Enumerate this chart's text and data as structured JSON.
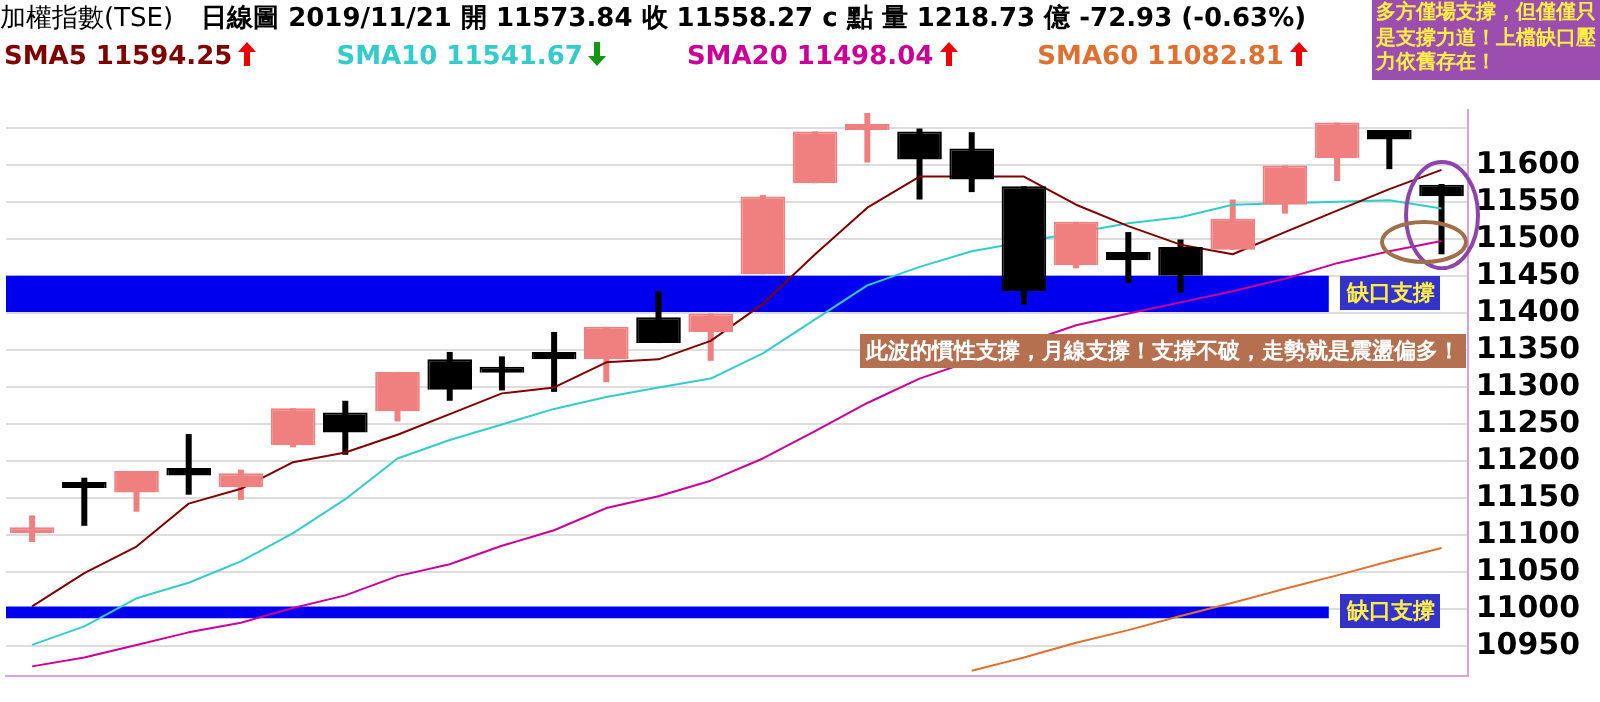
{
  "chart_data": {
    "type": "candlestick",
    "title": "加權指數(TSE)",
    "subtitle": "日線圖  2019/11/21  開 11573.84  收 11558.27 c 點  量 1218.73 億  -72.93 (-0.63%)",
    "categories": [
      null,
      null,
      null,
      null,
      null,
      null,
      null,
      null,
      null,
      null,
      null,
      null,
      null,
      null,
      null,
      null,
      null,
      null,
      null,
      null,
      null,
      null,
      null,
      null,
      null,
      null,
      null,
      null
    ],
    "ohlc": [
      [
        11103,
        11127,
        11091,
        11111
      ],
      [
        11166,
        11178,
        11113,
        11164
      ],
      [
        11158,
        11187,
        11132,
        11187
      ],
      [
        11191,
        11237,
        11155,
        11181
      ],
      [
        11165,
        11189,
        11148,
        11184
      ],
      [
        11222,
        11272,
        11219,
        11272
      ],
      [
        11266,
        11282,
        11209,
        11239
      ],
      [
        11268,
        11321,
        11254,
        11321
      ],
      [
        11338,
        11348,
        11282,
        11297
      ],
      [
        11322,
        11342,
        11296,
        11320
      ],
      [
        11348,
        11375,
        11294,
        11338
      ],
      [
        11338,
        11382,
        11307,
        11382
      ],
      [
        11395,
        11430,
        11360,
        11360
      ],
      [
        11375,
        11400,
        11336,
        11400
      ],
      [
        11453,
        11560,
        11453,
        11558
      ],
      [
        11576,
        11646,
        11576,
        11646
      ],
      [
        11648,
        11671,
        11604,
        11656
      ],
      [
        11646,
        11650,
        11554,
        11608
      ],
      [
        11623,
        11645,
        11564,
        11581
      ],
      [
        11572,
        11572,
        11412,
        11430
      ],
      [
        11465,
        11524,
        11461,
        11524
      ],
      [
        11483,
        11510,
        11441,
        11472
      ],
      [
        11490,
        11500,
        11428,
        11451
      ],
      [
        11486,
        11554,
        11486,
        11528
      ],
      [
        11547,
        11600,
        11535,
        11600
      ],
      [
        11610,
        11658,
        11579,
        11658
      ],
      [
        11648,
        11648,
        11595,
        11635
      ],
      [
        11573.84,
        11575,
        11480,
        11558.27
      ]
    ],
    "colors": [
      "#f08080",
      "#000000",
      "#f08080",
      "#000000",
      "#f08080",
      "#f08080",
      "#000000",
      "#f08080",
      "#000000",
      "#000000",
      "#000000",
      "#f08080",
      "#000000",
      "#f08080",
      "#f08080",
      "#f08080",
      "#f08080",
      "#000000",
      "#000000",
      "#000000",
      "#f08080",
      "#000000",
      "#000000",
      "#f08080",
      "#f08080",
      "#f08080",
      "#000000",
      "#000000"
    ],
    "series": [
      {
        "name": "SMA5 11594.25",
        "type": "line",
        "color": "#800000",
        "values": [
          11004,
          11049,
          11085,
          11143,
          11163,
          11199,
          11212,
          11236,
          11264,
          11292,
          11300,
          11334,
          11338,
          11363,
          11413,
          11480,
          11543,
          11585,
          null,
          11585,
          11547,
          11518,
          11493,
          11480,
          11510,
          11539,
          11568,
          11594
        ]
      },
      {
        "name": "SMA10 11541.67",
        "type": "line",
        "color": "#33cccc",
        "values": [
          10952,
          10977,
          11015,
          11036,
          11065,
          11103,
          11149,
          11204,
          11229,
          11250,
          11271,
          11287,
          11300,
          11312,
          11346,
          11392,
          11438,
          11463,
          11484,
          null,
          null,
          11522,
          11530,
          11547,
          null,
          11551,
          11553,
          11542
        ]
      },
      {
        "name": "SMA20 11498.04",
        "type": "line",
        "color": "#cc0099",
        "values": [
          10923,
          10935,
          10952,
          10969,
          10982,
          11002,
          11019,
          11045,
          11061,
          11086,
          11107,
          11137,
          11153,
          11174,
          11204,
          11241,
          11279,
          11312,
          null,
          null,
          11384,
          11400,
          11415,
          11430,
          11447,
          11468,
          11484,
          11498
        ]
      },
      {
        "name": "SMA60 11082.81",
        "type": "line",
        "color": "#e07030",
        "values": [
          null,
          null,
          null,
          null,
          null,
          null,
          null,
          null,
          null,
          null,
          null,
          null,
          null,
          null,
          null,
          null,
          null,
          null,
          10917,
          10935,
          10955,
          10972,
          10991,
          11009,
          11028,
          11046,
          11065,
          11083
        ]
      }
    ],
    "ylim": [
      10910,
      11675
    ],
    "yticks": [
      10950,
      11000,
      11050,
      11100,
      11150,
      11200,
      11250,
      11300,
      11350,
      11400,
      11450,
      11500,
      11550,
      11600,
      {
        "value": 11650,
        "label": null
      }
    ],
    "grid": "y",
    "legend": "top left",
    "tick_labels": "y",
    "bands": [
      {
        "axis": "y",
        "from": 11402,
        "to": 11451,
        "label": "缺口支撐",
        "color": "#0000ee"
      },
      {
        "axis": "y",
        "from": 10988,
        "to": 11004,
        "label": "缺口支撐",
        "color": "#0000ee"
      }
    ],
    "annotations": [
      "多方僅場支撐，但僅僅只是支撐力道！上檔缺口壓力依舊存在！",
      "此波的慣性支撐，月線支撐！支撐不破，走勢就是震盪偏多！"
    ]
  }
}
